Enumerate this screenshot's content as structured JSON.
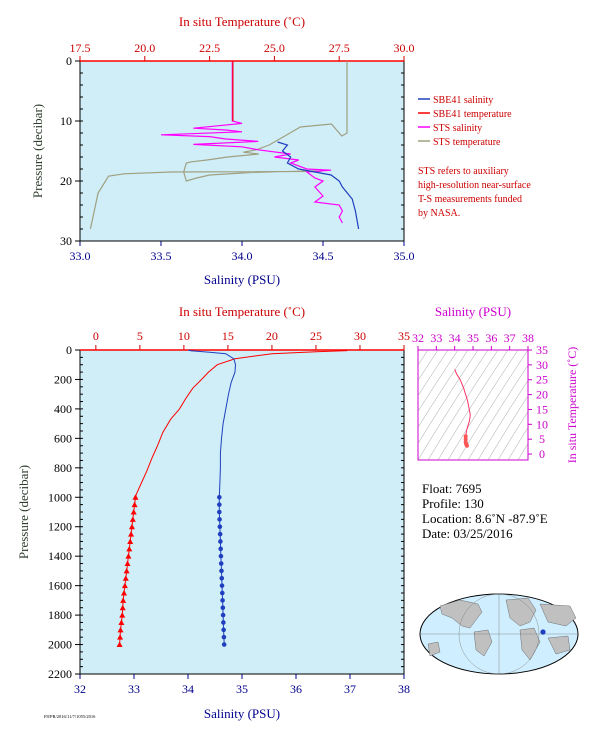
{
  "chart_data": [
    {
      "type": "line",
      "name": "top_profile",
      "top_axis_label": "In situ Temperature (˚C)",
      "top_ticks": [
        "17.5",
        "20.0",
        "22.5",
        "25.0",
        "27.5",
        "30.0"
      ],
      "top_range": [
        17.5,
        30.0
      ],
      "bottom_axis_label": "Salinity (PSU)",
      "bottom_ticks": [
        "33.0",
        "33.5",
        "34.0",
        "34.5",
        "35.0"
      ],
      "bottom_range": [
        33.0,
        35.0
      ],
      "ylabel": "Pressure (decibar)",
      "y_ticks": [
        "0",
        "10",
        "20",
        "30"
      ],
      "ylim": [
        0,
        30
      ],
      "grid": false,
      "legend": [
        {
          "label": "SBE41 salinity",
          "color": "#1f3fbf"
        },
        {
          "label": "SBE41 temperature",
          "color": "#ff0000"
        },
        {
          "label": "STS salinity",
          "color": "#ff00ff"
        },
        {
          "label": "STS temperature",
          "color": "#a0a080"
        }
      ],
      "note": [
        "STS refers to auxiliary",
        "high-resolution near-surface",
        "T-S measurements funded",
        "by NASA."
      ],
      "series": [
        {
          "name": "STS temperature",
          "axis": "temperature",
          "points": [
            [
              27.8,
              0
            ],
            [
              27.8,
              12
            ],
            [
              27.6,
              12.5
            ],
            [
              27.2,
              10.5
            ],
            [
              26.0,
              11
            ],
            [
              25.6,
              12
            ],
            [
              24.8,
              14
            ],
            [
              24.3,
              14.8
            ],
            [
              23.8,
              15.2
            ],
            [
              24.4,
              15.5
            ],
            [
              23.2,
              16
            ],
            [
              22.4,
              16.5
            ],
            [
              21.8,
              16.8
            ],
            [
              21.6,
              17
            ],
            [
              21.5,
              18.5
            ],
            [
              21.6,
              20
            ],
            [
              22.0,
              19.5
            ],
            [
              22.5,
              19.0
            ],
            [
              24.0,
              18.6
            ],
            [
              26.5,
              18.3
            ],
            [
              26.8,
              18.4
            ],
            [
              21.0,
              18.5
            ],
            [
              19.2,
              18.8
            ],
            [
              18.6,
              19.2
            ],
            [
              18.2,
              22
            ],
            [
              17.9,
              28
            ]
          ]
        },
        {
          "name": "STS salinity",
          "axis": "salinity",
          "points": [
            [
              33.94,
              0
            ],
            [
              33.94,
              10
            ],
            [
              34.0,
              10.4
            ],
            [
              33.85,
              10.8
            ],
            [
              33.7,
              11.2
            ],
            [
              33.9,
              11.5
            ],
            [
              34.0,
              11.8
            ],
            [
              33.5,
              12.3
            ],
            [
              33.8,
              12.6
            ],
            [
              33.9,
              13
            ],
            [
              34.1,
              13.4
            ],
            [
              33.7,
              13.9
            ],
            [
              34.0,
              14.3
            ],
            [
              34.1,
              14.8
            ],
            [
              34.3,
              15.5
            ],
            [
              34.2,
              16
            ],
            [
              34.35,
              16.5
            ],
            [
              34.3,
              17
            ],
            [
              34.4,
              18
            ],
            [
              34.55,
              18.2
            ],
            [
              34.4,
              18.5
            ],
            [
              34.45,
              19.5
            ],
            [
              34.5,
              20
            ],
            [
              34.45,
              21
            ],
            [
              34.5,
              22.5
            ],
            [
              34.45,
              23.5
            ],
            [
              34.6,
              24
            ],
            [
              34.62,
              25
            ],
            [
              34.6,
              26
            ],
            [
              34.62,
              27
            ]
          ]
        },
        {
          "name": "SBE41 salinity",
          "axis": "salinity",
          "points": [
            [
              34.22,
              13.5
            ],
            [
              34.28,
              14
            ],
            [
              34.25,
              15
            ],
            [
              34.3,
              16
            ],
            [
              34.28,
              17
            ],
            [
              34.35,
              18
            ],
            [
              34.45,
              18.5
            ],
            [
              34.55,
              19
            ],
            [
              34.6,
              20
            ],
            [
              34.62,
              21
            ],
            [
              34.65,
              22
            ],
            [
              34.68,
              23
            ],
            [
              34.7,
              25
            ],
            [
              34.72,
              28
            ]
          ]
        },
        {
          "name": "SBE41 temperature",
          "axis": "temperature",
          "points": [
            [
              23.4,
              0
            ],
            [
              23.4,
              10
            ]
          ]
        }
      ]
    },
    {
      "type": "line",
      "name": "main_profile",
      "top_axis_label": "In situ Temperature (˚C)",
      "top_ticks": [
        "0",
        "5",
        "10",
        "15",
        "20",
        "25",
        "30",
        "35"
      ],
      "top_range": [
        -1.8,
        35
      ],
      "bottom_axis_label": "Salinity (PSU)",
      "bottom_ticks": [
        "32",
        "33",
        "34",
        "35",
        "36",
        "37",
        "38"
      ],
      "bottom_range": [
        32,
        38
      ],
      "ylabel": "Pressure (decibar)",
      "y_ticks": [
        "0",
        "200",
        "400",
        "600",
        "800",
        "1000",
        "1200",
        "1400",
        "1600",
        "1800",
        "2000",
        "2200"
      ],
      "ylim": [
        0,
        2200
      ],
      "grid": false,
      "series": [
        {
          "name": "Temperature",
          "axis": "temperature",
          "points": [
            [
              0,
              0
            ],
            [
              28.5,
              0
            ],
            [
              28.5,
              5
            ],
            [
              25,
              12
            ],
            [
              20,
              25
            ],
            [
              15.8,
              60
            ],
            [
              13.8,
              100
            ],
            [
              12.8,
              150
            ],
            [
              12.0,
              200
            ],
            [
              11.0,
              260
            ],
            [
              10.2,
              330
            ],
            [
              9.5,
              400
            ],
            [
              8.5,
              470
            ],
            [
              7.6,
              560
            ],
            [
              7.0,
              650
            ],
            [
              6.4,
              730
            ],
            [
              5.8,
              820
            ],
            [
              5.2,
              900
            ],
            [
              4.6,
              980
            ],
            [
              4.5,
              1000
            ],
            [
              4.4,
              1050
            ],
            [
              4.3,
              1100
            ],
            [
              4.1,
              1200
            ],
            [
              3.9,
              1300
            ],
            [
              3.7,
              1400
            ],
            [
              3.5,
              1500
            ],
            [
              3.3,
              1600
            ],
            [
              3.1,
              1700
            ],
            [
              3.0,
              1800
            ],
            [
              2.8,
              1900
            ],
            [
              2.7,
              2000
            ]
          ]
        },
        {
          "name": "Salinity",
          "axis": "salinity",
          "points": [
            [
              34.0,
              0
            ],
            [
              34.05,
              5
            ],
            [
              34.4,
              15
            ],
            [
              34.7,
              25
            ],
            [
              34.85,
              60
            ],
            [
              34.88,
              100
            ],
            [
              34.87,
              150
            ],
            [
              34.8,
              220
            ],
            [
              34.75,
              300
            ],
            [
              34.7,
              400
            ],
            [
              34.65,
              500
            ],
            [
              34.62,
              600
            ],
            [
              34.6,
              700
            ],
            [
              34.6,
              800
            ],
            [
              34.59,
              900
            ],
            [
              34.58,
              1000
            ],
            [
              34.58,
              1100
            ],
            [
              34.59,
              1200
            ],
            [
              34.6,
              1300
            ],
            [
              34.61,
              1400
            ],
            [
              34.62,
              1500
            ],
            [
              34.63,
              1600
            ],
            [
              34.64,
              1700
            ],
            [
              34.65,
              1800
            ],
            [
              34.66,
              1900
            ],
            [
              34.67,
              2000
            ]
          ]
        }
      ],
      "temp_markers_p": [
        1000,
        1050,
        1100,
        1150,
        1200,
        1250,
        1300,
        1350,
        1400,
        1450,
        1500,
        1550,
        1600,
        1650,
        1700,
        1750,
        1800,
        1850,
        1900,
        1950,
        2000
      ],
      "sal_markers_p": [
        1000,
        1050,
        1100,
        1150,
        1200,
        1250,
        1300,
        1350,
        1400,
        1450,
        1500,
        1550,
        1600,
        1650,
        1700,
        1750,
        1800,
        1850,
        1900,
        1950,
        2000
      ]
    },
    {
      "type": "scatter",
      "name": "ts_diagram",
      "top_axis_label": "Salinity (PSU)",
      "top_ticks": [
        "32",
        "33",
        "34",
        "35",
        "36",
        "37",
        "38"
      ],
      "top_range": [
        32,
        38
      ],
      "right_axis_label": "In situ Temperature (˚C)",
      "right_ticks": [
        "0",
        "5",
        "10",
        "15",
        "20",
        "25",
        "30",
        "35"
      ],
      "right_range": [
        -2,
        35
      ],
      "points": [
        [
          34.0,
          28.5
        ],
        [
          34.1,
          27
        ],
        [
          34.3,
          25
        ],
        [
          34.5,
          22
        ],
        [
          34.7,
          18
        ],
        [
          34.8,
          15
        ],
        [
          34.85,
          13
        ],
        [
          34.8,
          11
        ],
        [
          34.7,
          9
        ],
        [
          34.65,
          8
        ],
        [
          34.6,
          6
        ],
        [
          34.6,
          5
        ],
        [
          34.6,
          4
        ],
        [
          34.62,
          3.5
        ],
        [
          34.65,
          3
        ],
        [
          34.67,
          2.8
        ]
      ]
    }
  ],
  "float_info": {
    "float": "Float:  7695",
    "profile": "Profile:  130",
    "location": "Location:  8.6˚N  -87.9˚E",
    "date": "Date:  03/25/2016"
  },
  "map": {
    "marker_color": "#1f3fbf",
    "land_color": "#c0c0c0",
    "ocean_color": "#cfeeff"
  },
  "footer_code": "F8/PR/2016/11/7/1055/2016"
}
